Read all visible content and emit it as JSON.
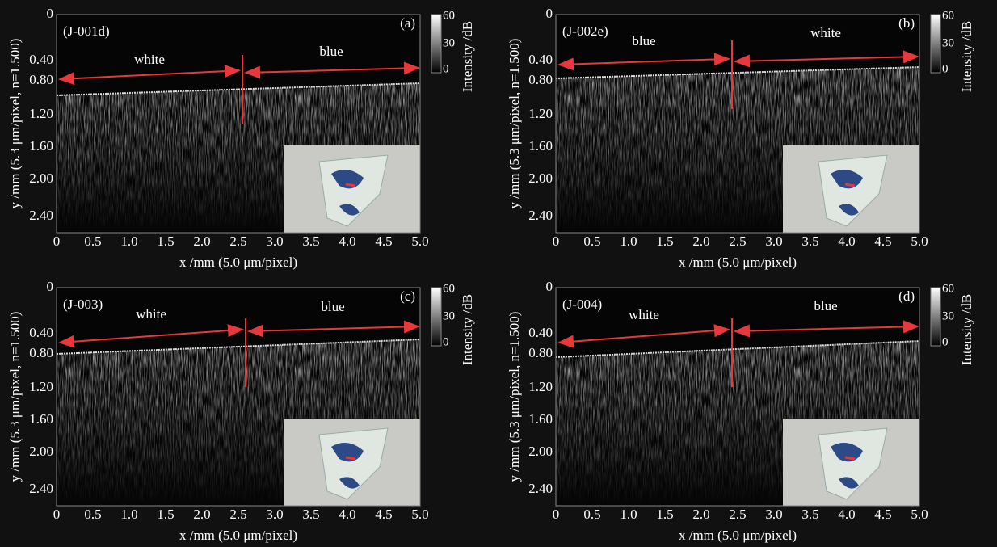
{
  "axes": {
    "y_label": "y /mm (5.3 μm/pixel, n=1.500)",
    "x_label": "x /mm (5.0 μm/pixel)",
    "yticks": [
      "0",
      "0.40",
      "0.80",
      "1.20",
      "1.60",
      "2.00",
      "2.40"
    ],
    "xticks": [
      "0",
      "0.5",
      "1.0",
      "1.5",
      "2.0",
      "2.5",
      "3.0",
      "3.5",
      "4.0",
      "4.5",
      "5.0"
    ],
    "colorbar_label": "Intensity /dB",
    "colorbar_ticks": [
      "60",
      "30",
      "0"
    ]
  },
  "panels": [
    {
      "sample": "(J-001d)",
      "letter": "(a)",
      "left_region": "white",
      "right_region": "blue"
    },
    {
      "sample": "(J-002e)",
      "letter": "(b)",
      "left_region": "blue",
      "right_region": "white"
    },
    {
      "sample": "(J-003)",
      "letter": "(c)",
      "left_region": "white",
      "right_region": "blue"
    },
    {
      "sample": "(J-004)",
      "letter": "(d)",
      "left_region": "white",
      "right_region": "blue"
    }
  ]
}
